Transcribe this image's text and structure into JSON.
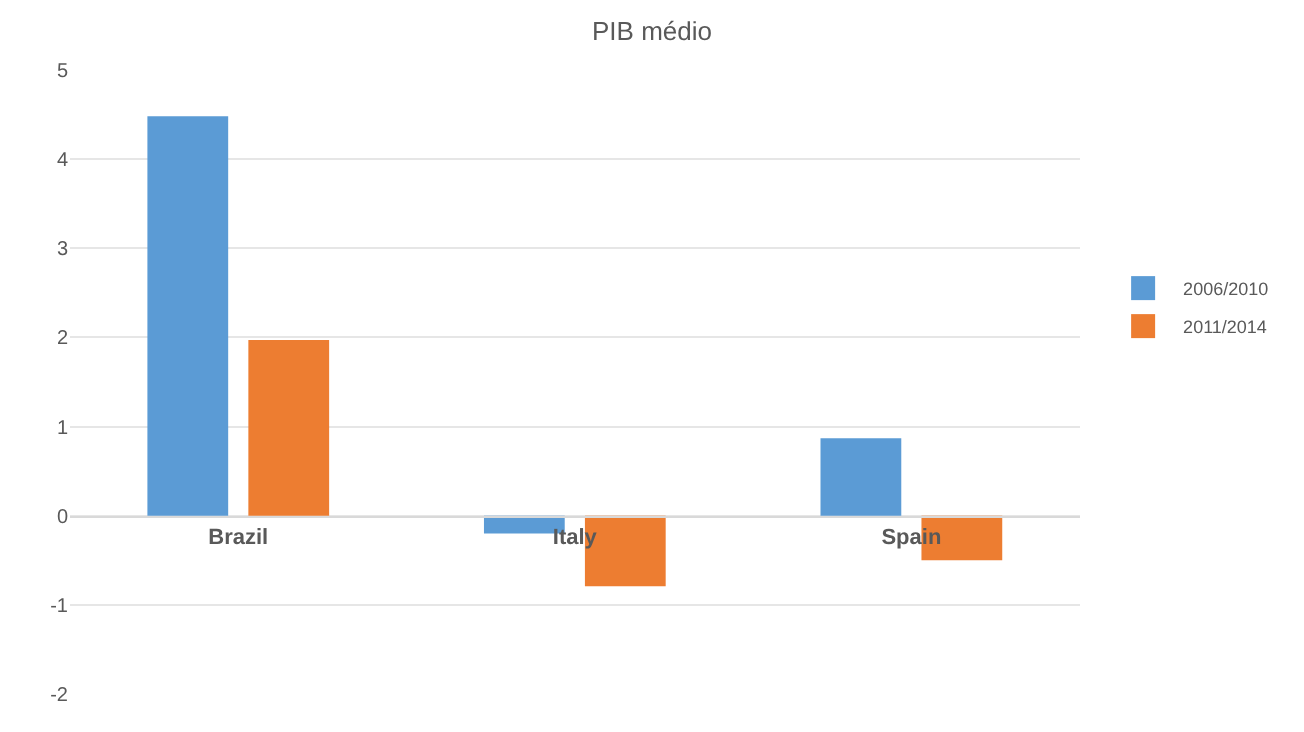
{
  "chart_data": {
    "type": "bar",
    "title": "PIB médio",
    "categories": [
      "Brazil",
      "Italy",
      "Spain"
    ],
    "series": [
      {
        "name": "2006/2010",
        "color": "#5b9bd5",
        "values": [
          4.48,
          -0.2,
          0.87
        ]
      },
      {
        "name": "2011/2014",
        "color": "#ed7d31",
        "values": [
          1.97,
          -0.79,
          -0.5
        ]
      }
    ],
    "ylim": [
      -2,
      5
    ],
    "yticks": [
      -2,
      -1,
      0,
      1,
      2,
      3,
      4,
      5
    ],
    "grid": "y",
    "legend": "right"
  }
}
